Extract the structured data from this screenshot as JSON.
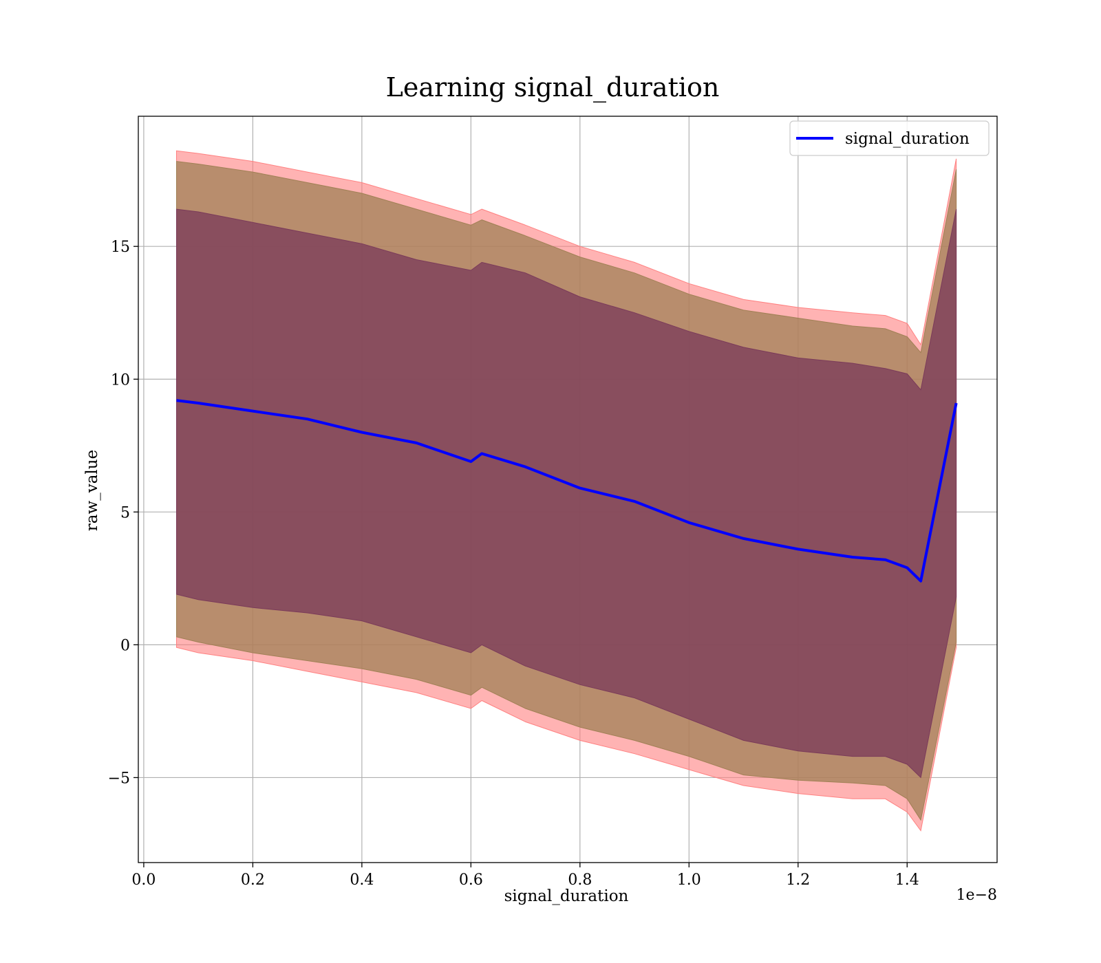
{
  "chart_data": {
    "type": "area",
    "title": "Learning signal_duration",
    "xlabel": "signal_duration",
    "ylabel": "raw_value",
    "x_offset_label": "1e−8",
    "x_scale_factor": 1e-08,
    "xlim": [
      -0.01,
      1.565
    ],
    "ylim": [
      -8.2,
      19.9
    ],
    "xticks": [
      0.0,
      0.2,
      0.4,
      0.6,
      0.8,
      1.0,
      1.2,
      1.4
    ],
    "xtick_labels": [
      "0.0",
      "0.2",
      "0.4",
      "0.6",
      "0.8",
      "1.0",
      "1.2",
      "1.4"
    ],
    "yticks": [
      -5,
      0,
      5,
      10,
      15
    ],
    "ytick_labels": [
      "−5",
      "0",
      "5",
      "10",
      "15"
    ],
    "grid": true,
    "legend": {
      "position": "top-right",
      "entries": [
        "signal_duration"
      ]
    },
    "colors": {
      "line": "#0000ff",
      "band_outer": "#ff8080",
      "band_middle": "#a08055",
      "band_inner": "#7a3a5a"
    },
    "series": [
      {
        "name": "signal_duration",
        "x": [
          0.06,
          0.1,
          0.2,
          0.3,
          0.4,
          0.5,
          0.6,
          0.62,
          0.7,
          0.8,
          0.9,
          1.0,
          1.1,
          1.2,
          1.3,
          1.36,
          1.4,
          1.425,
          1.49
        ],
        "mean": [
          9.2,
          9.1,
          8.8,
          8.5,
          8.0,
          7.6,
          6.9,
          7.2,
          6.7,
          5.9,
          5.4,
          4.6,
          4.0,
          3.6,
          3.3,
          3.2,
          2.9,
          2.4,
          9.1
        ],
        "band_1std": {
          "lower": [
            1.9,
            1.7,
            1.4,
            1.2,
            0.9,
            0.3,
            -0.3,
            0.0,
            -0.8,
            -1.5,
            -2.0,
            -2.8,
            -3.6,
            -4.0,
            -4.2,
            -4.2,
            -4.5,
            -5.0,
            1.8
          ],
          "upper": [
            16.4,
            16.3,
            15.9,
            15.5,
            15.1,
            14.5,
            14.1,
            14.4,
            14.0,
            13.1,
            12.5,
            11.8,
            11.2,
            10.8,
            10.6,
            10.4,
            10.2,
            9.6,
            16.4
          ]
        },
        "band_2std": {
          "lower": [
            0.3,
            0.1,
            -0.3,
            -0.6,
            -0.9,
            -1.3,
            -1.9,
            -1.6,
            -2.4,
            -3.1,
            -3.6,
            -4.2,
            -4.9,
            -5.1,
            -5.2,
            -5.3,
            -5.8,
            -6.6,
            0.1
          ]
        },
        "band_3std": {
          "lower": [
            -0.1,
            -0.3,
            -0.6,
            -1.0,
            -1.4,
            -1.8,
            -2.4,
            -2.1,
            -2.9,
            -3.6,
            -4.1,
            -4.7,
            -5.3,
            -5.6,
            -5.8,
            -5.8,
            -6.3,
            -7.0,
            -0.1
          ],
          "upper": [
            18.6,
            18.5,
            18.2,
            17.8,
            17.4,
            16.8,
            16.2,
            16.4,
            15.8,
            15.0,
            14.4,
            13.6,
            13.0,
            12.7,
            12.5,
            12.4,
            12.1,
            11.3,
            18.3
          ]
        },
        "band_2std_upper": [
          18.2,
          18.1,
          17.8,
          17.4,
          17.0,
          16.4,
          15.8,
          16.0,
          15.4,
          14.6,
          14.0,
          13.2,
          12.6,
          12.3,
          12.0,
          11.9,
          11.6,
          11.0,
          17.9
        ]
      }
    ]
  }
}
